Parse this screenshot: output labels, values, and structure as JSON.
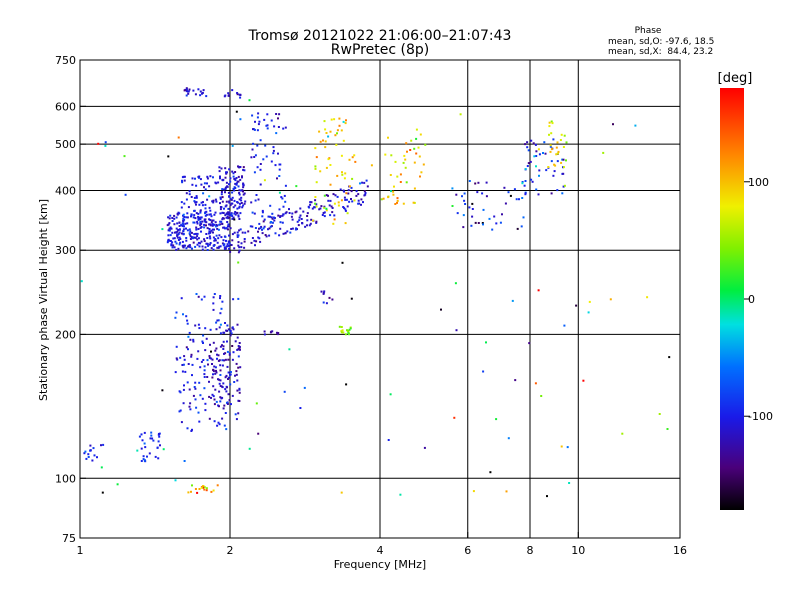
{
  "chart_data": {
    "type": "scatter",
    "title": "Tromsø 20121022 21:06:00–21:07:43",
    "subtitle": "RwPretec (8p)",
    "xlabel": "Frequency [MHz]",
    "ylabel": "Stationary phase Virtual Height [km]",
    "x_scale": "log",
    "y_scale": "log",
    "xlim": [
      1,
      16
    ],
    "ylim": [
      75,
      750
    ],
    "x_ticks": [
      1,
      2,
      4,
      6,
      8,
      10,
      16
    ],
    "y_ticks": [
      75,
      100,
      200,
      300,
      400,
      500,
      600,
      750
    ],
    "x_gridlines": [
      2,
      4,
      6,
      8,
      10
    ],
    "y_gridlines": [
      100,
      200,
      300,
      400,
      500,
      600
    ],
    "stats": {
      "header": "Phase",
      "line1": "mean, sd,O: -97.6, 18.5",
      "line2": "mean, sd,X:  84.4, 23.2"
    },
    "colorbar": {
      "label": "[deg]",
      "range": [
        -180,
        180
      ],
      "ticks": [
        {
          "value": 100,
          "label": "100"
        },
        {
          "value": 0,
          "label": "0"
        },
        {
          "value": -100,
          "label": "-100"
        }
      ]
    },
    "clusters": [
      {
        "x": [
          1.5,
          2.0
        ],
        "y": [
          300,
          360
        ],
        "n": 260,
        "phase": -105,
        "spread": 14,
        "shape": "box"
      },
      {
        "x": [
          1.6,
          2.1
        ],
        "y": [
          330,
          430
        ],
        "n": 140,
        "phase": -100,
        "spread": 14,
        "shape": "box"
      },
      {
        "x": [
          1.9,
          2.15
        ],
        "y": [
          350,
          450
        ],
        "n": 90,
        "phase": -112,
        "spread": 12,
        "shape": "box"
      },
      {
        "x": [
          2.0,
          3.8
        ],
        "y": [
          310,
          400
        ],
        "n": 170,
        "phase": -112,
        "spread": 14,
        "shape": "rising"
      },
      {
        "x": [
          2.2,
          2.6
        ],
        "y": [
          330,
          580
        ],
        "n": 80,
        "phase": -100,
        "spread": 14,
        "shape": "box"
      },
      {
        "x": [
          2.9,
          3.6
        ],
        "y": [
          340,
          580
        ],
        "n": 60,
        "phase": 88,
        "spread": 24,
        "shape": "box"
      },
      {
        "x": [
          4.0,
          5.0
        ],
        "y": [
          370,
          540
        ],
        "n": 45,
        "phase": 92,
        "spread": 28,
        "shape": "box"
      },
      {
        "x": [
          1.62,
          1.8
        ],
        "y": [
          630,
          655
        ],
        "n": 20,
        "phase": -110,
        "spread": 12,
        "shape": "box"
      },
      {
        "x": [
          1.95,
          2.1
        ],
        "y": [
          625,
          650
        ],
        "n": 12,
        "phase": -110,
        "spread": 12,
        "shape": "box"
      },
      {
        "x": [
          1.55,
          2.1
        ],
        "y": [
          125,
          245
        ],
        "n": 170,
        "phase": -102,
        "spread": 16,
        "shape": "box"
      },
      {
        "x": [
          1.8,
          2.1
        ],
        "y": [
          140,
          210
        ],
        "n": 80,
        "phase": -125,
        "spread": 12,
        "shape": "box"
      },
      {
        "x": [
          1.3,
          1.45
        ],
        "y": [
          108,
          125
        ],
        "n": 30,
        "phase": -95,
        "spread": 14,
        "shape": "box"
      },
      {
        "x": [
          1.02,
          1.12
        ],
        "y": [
          108,
          118
        ],
        "n": 15,
        "phase": -95,
        "spread": 14,
        "shape": "box"
      },
      {
        "x": [
          1.65,
          1.9
        ],
        "y": [
          93,
          97
        ],
        "n": 18,
        "phase": 95,
        "spread": 40,
        "shape": "box"
      },
      {
        "x": [
          5.5,
          7.8
        ],
        "y": [
          330,
          420
        ],
        "n": 45,
        "phase": -95,
        "spread": 40,
        "shape": "box"
      },
      {
        "x": [
          7.8,
          9.4
        ],
        "y": [
          390,
          520
        ],
        "n": 50,
        "phase": -92,
        "spread": 30,
        "shape": "box"
      },
      {
        "x": [
          8.7,
          9.5
        ],
        "y": [
          440,
          560
        ],
        "n": 25,
        "phase": 85,
        "spread": 20,
        "shape": "box"
      },
      {
        "x": [
          3.2,
          3.5
        ],
        "y": [
          200,
          208
        ],
        "n": 15,
        "phase": 55,
        "spread": 15,
        "shape": "box"
      },
      {
        "x": [
          3.05,
          3.3
        ],
        "y": [
          230,
          250
        ],
        "n": 8,
        "phase": -120,
        "spread": 10,
        "shape": "box"
      },
      {
        "x": [
          2.3,
          2.5
        ],
        "y": [
          198,
          203
        ],
        "n": 8,
        "phase": -125,
        "spread": 8,
        "shape": "box"
      },
      {
        "x": [
          1.0,
          16.0
        ],
        "y": [
          90,
          650
        ],
        "n": 90,
        "phase": -20,
        "spread": 110,
        "shape": "box"
      }
    ]
  }
}
